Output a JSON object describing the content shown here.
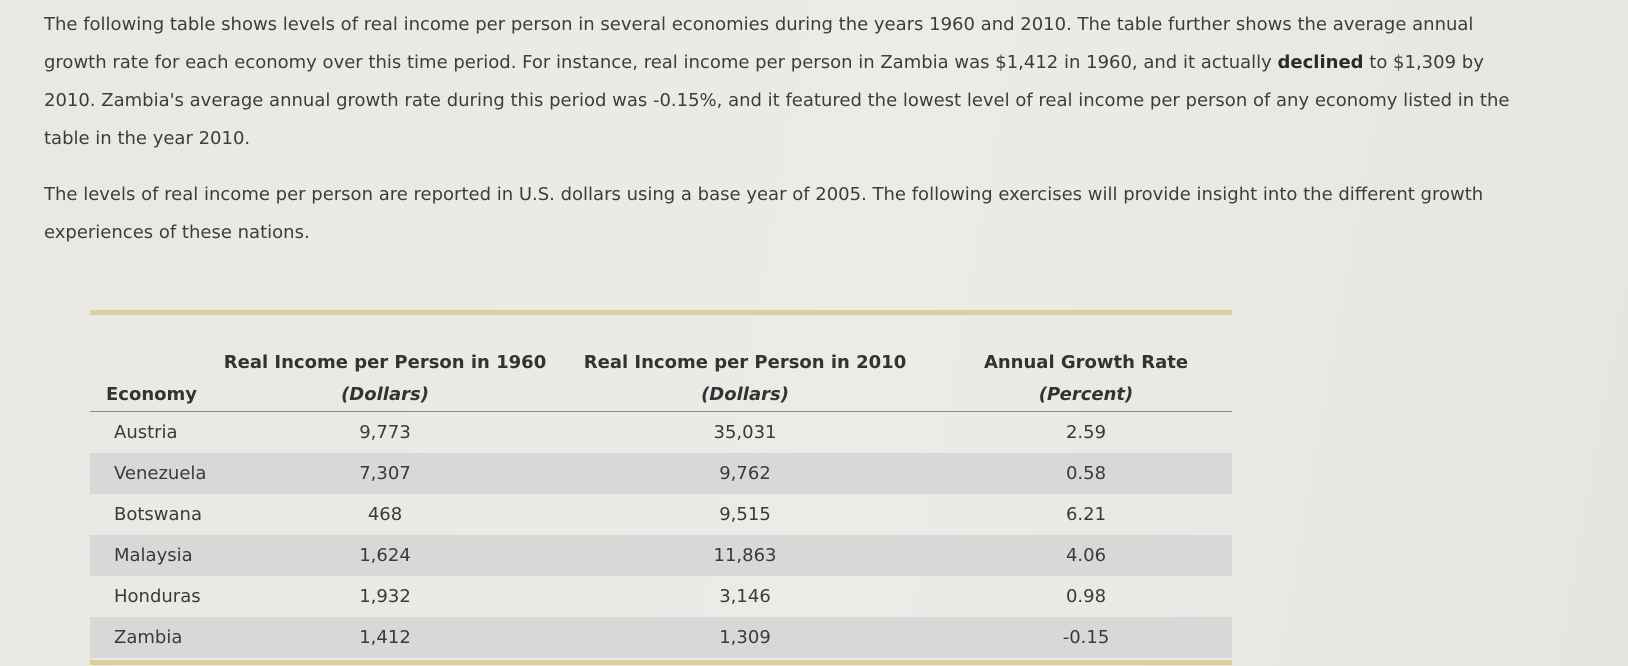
{
  "intro": {
    "p1_part1": "The following table shows levels of real income per person in several economies during the years 1960 and 2010. The table further shows the average annual growth rate for each economy over this time period. For instance, real income per person in Zambia was $1,412 in 1960, and it actually ",
    "p1_bold": "declined",
    "p1_part2": " to $1,309 by 2010. Zambia's average annual growth rate during this period was -0.15%, and it featured the lowest level of real income per person of any economy listed in the table in the year 2010.",
    "p2": "The levels of real income per person are reported in U.S. dollars using a base year of 2005. The following exercises will provide insight into the different growth experiences of these nations."
  },
  "table": {
    "headers": {
      "economy": "Economy",
      "income1960": "Real Income per Person in 1960",
      "income1960_unit": "(Dollars)",
      "income2010": "Real Income per Person in 2010",
      "income2010_unit": "(Dollars)",
      "growth": "Annual Growth Rate",
      "growth_unit": "(Percent)"
    },
    "rows": [
      {
        "economy": "Austria",
        "income1960": "9,773",
        "income2010": "35,031",
        "growth": "2.59"
      },
      {
        "economy": "Venezuela",
        "income1960": "7,307",
        "income2010": "9,762",
        "growth": "0.58"
      },
      {
        "economy": "Botswana",
        "income1960": "468",
        "income2010": "9,515",
        "growth": "6.21"
      },
      {
        "economy": "Malaysia",
        "income1960": "1,624",
        "income2010": "11,863",
        "growth": "4.06"
      },
      {
        "economy": "Honduras",
        "income1960": "1,932",
        "income2010": "3,146",
        "growth": "0.98"
      },
      {
        "economy": "Zambia",
        "income1960": "1,412",
        "income2010": "1,309",
        "growth": "-0.15"
      }
    ]
  }
}
